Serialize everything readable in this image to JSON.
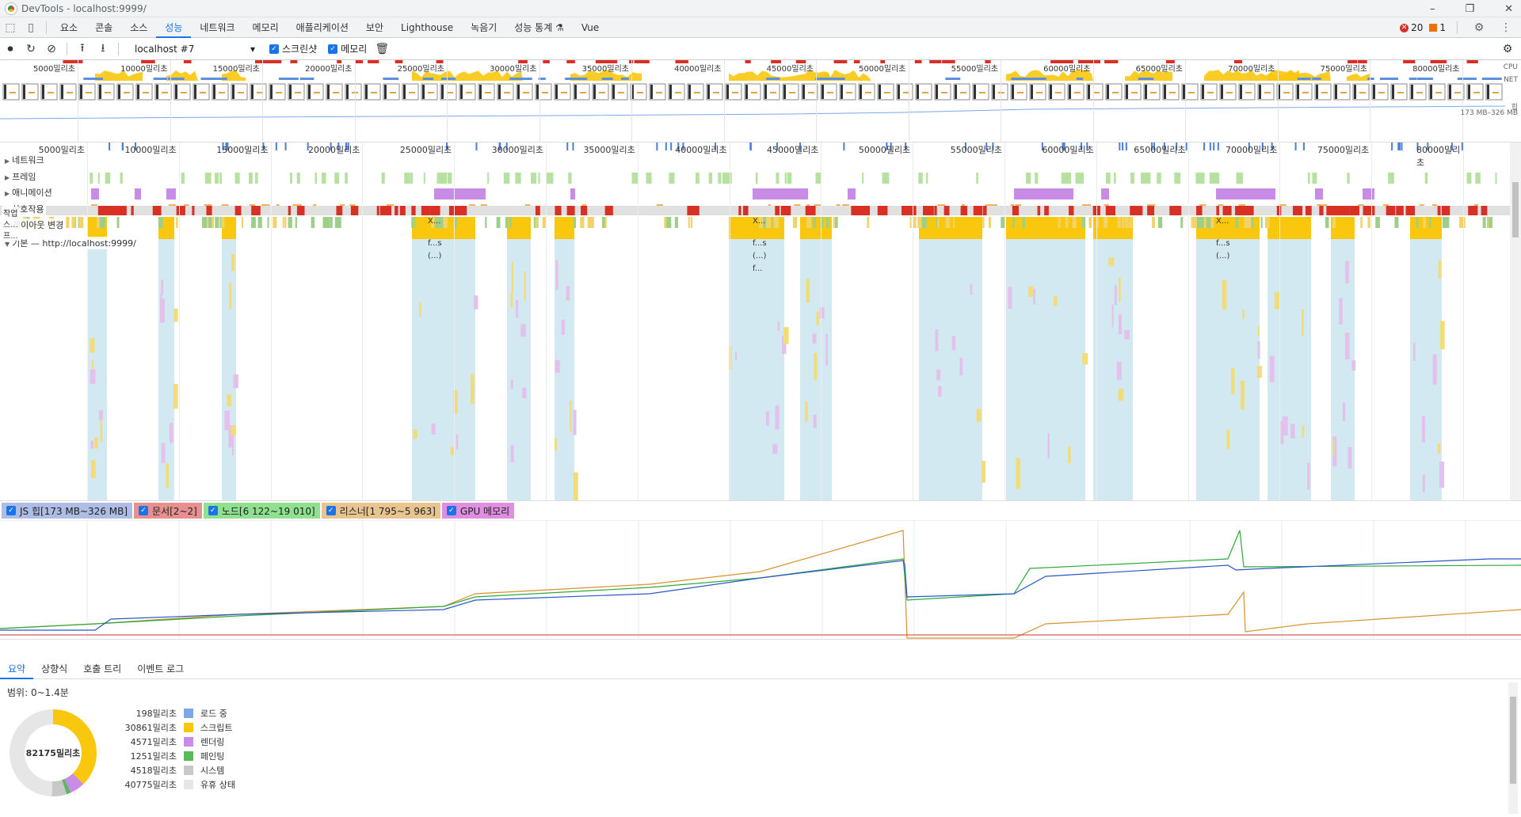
{
  "window": {
    "title": "DevTools - localhost:9999/"
  },
  "tabs": [
    "요소",
    "콘솔",
    "소스",
    "성능",
    "네트워크",
    "메모리",
    "애플리케이션",
    "보안",
    "Lighthouse",
    "녹음기",
    "성능 통계 ⚗",
    "Vue"
  ],
  "active_tab": "성능",
  "status": {
    "errors": "20",
    "warnings": "1"
  },
  "perf_toolbar": {
    "profile_select": "localhost #7",
    "screenshots_label": "스크린샷",
    "memory_label": "메모리"
  },
  "overview": {
    "ticks": [
      "5000밀리초",
      "10000밀리초",
      "15000밀리초",
      "20000밀리초",
      "25000밀리초",
      "30000밀리초",
      "35000밀리초",
      "40000밀리초",
      "45000밀리초",
      "50000밀리초",
      "55000밀리초",
      "60000밀리초",
      "65000밀리초",
      "70000밀리초",
      "75000밀리초",
      "80000밀리초"
    ],
    "cpu_label": "CPU",
    "net_label": "NET",
    "heap_label": "힙",
    "heap_range": "173 MB–326 MB"
  },
  "timeline": {
    "ticks": [
      "5000밀리초",
      "10000밀리초",
      "15000밀리초",
      "20000밀리초",
      "25000밀리초",
      "30000밀리초",
      "35000밀리초",
      "40000밀리초",
      "45000밀리초",
      "50000밀리초",
      "55000밀리초",
      "60000밀리초",
      "65000밀리초",
      "70000밀리초",
      "75000밀리초",
      "80000밀리초"
    ],
    "tracks": [
      "네트워크",
      "프레임",
      "애니메이션",
      "상호작용",
      "레이아웃 변경"
    ],
    "main_thread_label": "기본 — http://localhost:9999/",
    "flame_labels": [
      "작업",
      "스...",
      "프...",
      "X...",
      "f...s",
      "(...)",
      "f..."
    ]
  },
  "memory_legend": [
    {
      "label": "JS 힙[173 MB~326 MB]",
      "color": "#aebde3"
    },
    {
      "label": "문서[2~2]",
      "color": "#e88f8f"
    },
    {
      "label": "노드[6 122~19 010]",
      "color": "#8fe08f"
    },
    {
      "label": "리스너[1 795~5 963]",
      "color": "#e8c48f"
    },
    {
      "label": "GPU 메모리",
      "color": "#e08fe0"
    }
  ],
  "bottom_tabs": [
    "요약",
    "상향식",
    "호출 트리",
    "이벤트 로그"
  ],
  "summary": {
    "range": "범위: 0~1.4분",
    "total": "82175밀리초",
    "items": [
      {
        "value": "198밀리초",
        "label": "로드 중",
        "color": "#7ea7e8"
      },
      {
        "value": "30861밀리초",
        "label": "스크립트",
        "color": "#f9c80e"
      },
      {
        "value": "4571밀리초",
        "label": "렌더링",
        "color": "#c88ce6"
      },
      {
        "value": "1251밀리초",
        "label": "페인팅",
        "color": "#5bb85d"
      },
      {
        "value": "4518밀리초",
        "label": "시스템",
        "color": "#c8c8c8"
      },
      {
        "value": "40775밀리초",
        "label": "유휴 상태",
        "color": "#e6e6e6"
      }
    ]
  }
}
